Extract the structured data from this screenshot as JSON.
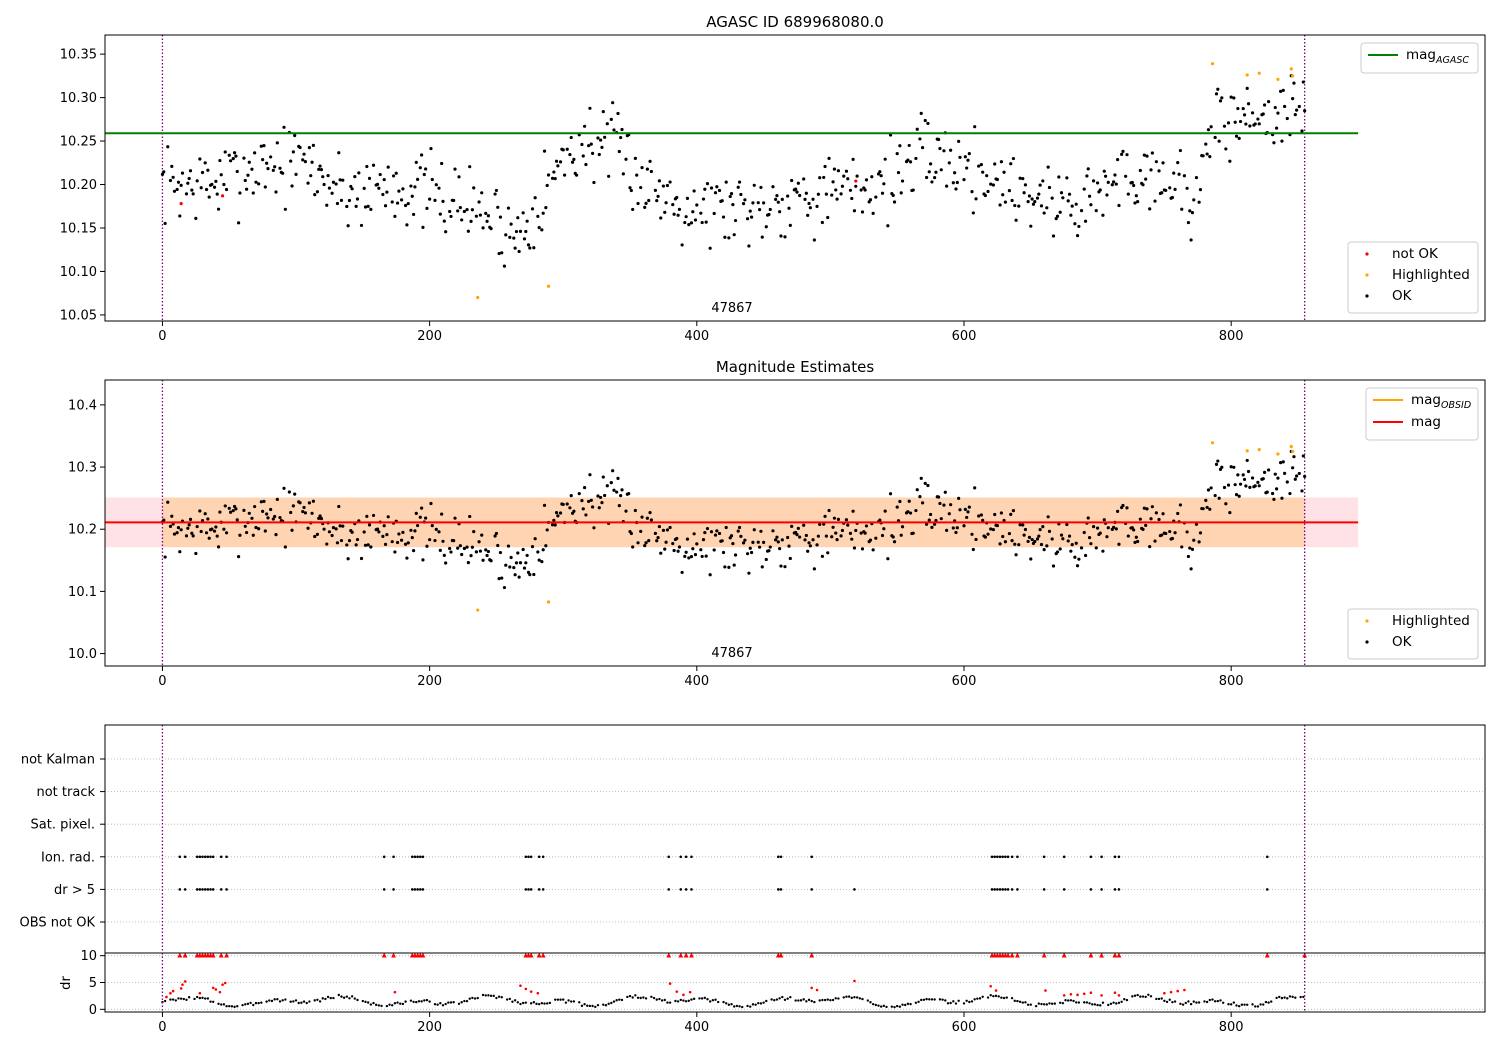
{
  "chart_data": [
    {
      "type": "scatter",
      "title": "AGASC ID 689968080.0",
      "xlim": [
        -43,
        990
      ],
      "ylim": [
        10.043,
        10.372
      ],
      "x_ticks": [
        0,
        200,
        400,
        600,
        800
      ],
      "x_tick_labels": [
        "0",
        "200",
        "400",
        "600",
        "800"
      ],
      "y_ticks": [
        10.05,
        10.1,
        10.15,
        10.2,
        10.25,
        10.3,
        10.35
      ],
      "y_tick_labels": [
        "10.05",
        "10.10",
        "10.15",
        "10.20",
        "10.25",
        "10.30",
        "10.35"
      ],
      "obsid_label": "47867",
      "obsid_label_x": 428,
      "obsid_bounds": [
        0,
        855
      ],
      "mag_agasc": 10.259,
      "mag_agasc_range": [
        -43,
        895
      ],
      "legend_line": [
        {
          "name": "mag",
          "subscript": "AGASC",
          "color": "#008000"
        }
      ],
      "legend_points": [
        {
          "name": "not OK",
          "color": "#ff0000"
        },
        {
          "name": "Highlighted",
          "color": "#ffa500"
        },
        {
          "name": "OK",
          "color": "#000000"
        }
      ],
      "series": [
        {
          "name": "not OK",
          "color": "#ff0000",
          "points": [
            [
              14,
              10.178
            ],
            [
              45,
              10.187
            ],
            [
              519,
              10.204
            ]
          ]
        },
        {
          "name": "Highlighted",
          "color": "#ffa500",
          "points": [
            [
              236,
              10.07
            ],
            [
              289,
              10.083
            ],
            [
              786,
              10.339
            ],
            [
              812,
              10.326
            ],
            [
              821,
              10.328
            ],
            [
              835,
              10.321
            ],
            [
              845,
              10.333
            ],
            [
              846,
              10.325
            ]
          ]
        }
      ],
      "ok_trend": [
        [
          0,
          10.2
        ],
        [
          40,
          10.2
        ],
        [
          75,
          10.225
        ],
        [
          110,
          10.222
        ],
        [
          135,
          10.19
        ],
        [
          170,
          10.2
        ],
        [
          200,
          10.19
        ],
        [
          240,
          10.17
        ],
        [
          265,
          10.14
        ],
        [
          285,
          10.19
        ],
        [
          305,
          10.24
        ],
        [
          325,
          10.25
        ],
        [
          345,
          10.235
        ],
        [
          360,
          10.2
        ],
        [
          400,
          10.175
        ],
        [
          440,
          10.175
        ],
        [
          480,
          10.19
        ],
        [
          510,
          10.19
        ],
        [
          540,
          10.205
        ],
        [
          575,
          10.235
        ],
        [
          610,
          10.215
        ],
        [
          640,
          10.195
        ],
        [
          665,
          10.18
        ],
        [
          690,
          10.18
        ],
        [
          720,
          10.21
        ],
        [
          750,
          10.215
        ],
        [
          770,
          10.18
        ],
        [
          790,
          10.27
        ],
        [
          820,
          10.28
        ],
        [
          855,
          10.285
        ]
      ],
      "ok_scatter": 0.022
    },
    {
      "type": "scatter",
      "title": "Magnitude Estimates",
      "xlim": [
        -43,
        990
      ],
      "ylim": [
        9.98,
        10.44
      ],
      "x_ticks": [
        0,
        200,
        400,
        600,
        800
      ],
      "x_tick_labels": [
        "0",
        "200",
        "400",
        "600",
        "800"
      ],
      "y_ticks": [
        10.0,
        10.1,
        10.2,
        10.3,
        10.4
      ],
      "y_tick_labels": [
        "10.0",
        "10.1",
        "10.2",
        "10.3",
        "10.4"
      ],
      "obsid_label": "47867",
      "obsid_label_x": 428,
      "obsid_bounds": [
        0,
        855
      ],
      "mag": 10.211,
      "mag_band": [
        10.171,
        10.251
      ],
      "mag_obsid_band": [
        10.171,
        10.251
      ],
      "band_range": [
        -43,
        895
      ],
      "legend_line": [
        {
          "name": "mag",
          "subscript": "OBSID",
          "color": "#ffa500"
        },
        {
          "name": "mag",
          "subscript": "",
          "color": "#ff0000"
        }
      ],
      "legend_points": [
        {
          "name": "Highlighted",
          "color": "#ffa500"
        },
        {
          "name": "OK",
          "color": "#000000"
        }
      ],
      "series": [
        {
          "name": "Highlighted",
          "color": "#ffa500",
          "points": [
            [
              236,
              10.07
            ],
            [
              289,
              10.083
            ],
            [
              786,
              10.339
            ],
            [
              812,
              10.326
            ],
            [
              821,
              10.328
            ],
            [
              835,
              10.321
            ],
            [
              845,
              10.333
            ],
            [
              846,
              10.325
            ]
          ]
        }
      ]
    },
    {
      "type": "scatter",
      "xlim": [
        -43,
        990
      ],
      "y_categories": [
        "not Kalman",
        "not track",
        "Sat. pixel.",
        "Ion. rad.",
        "dr > 5",
        "OBS not OK"
      ],
      "flags": {
        "Ion. rad.": [
          13,
          17,
          26,
          28,
          30,
          32,
          34,
          36,
          38,
          44,
          48,
          166,
          173,
          187,
          189,
          191,
          193,
          195,
          272,
          274,
          276,
          282,
          285,
          379,
          388,
          392,
          396,
          461,
          463,
          486,
          621,
          623,
          625,
          627,
          629,
          631,
          633,
          636,
          640,
          660,
          675,
          695,
          703,
          713,
          716,
          827
        ],
        "dr > 5": [
          13,
          17,
          26,
          28,
          30,
          32,
          34,
          36,
          38,
          44,
          48,
          166,
          173,
          187,
          189,
          191,
          193,
          195,
          272,
          274,
          276,
          282,
          285,
          379,
          388,
          392,
          396,
          461,
          463,
          486,
          518,
          621,
          623,
          625,
          627,
          629,
          631,
          633,
          636,
          640,
          660,
          675,
          695,
          703,
          713,
          716,
          827
        ]
      },
      "x_ticks": [
        0,
        200,
        400,
        600,
        800
      ],
      "x_tick_labels": [
        "0",
        "200",
        "400",
        "600",
        "800"
      ],
      "obsid_bounds": [
        0,
        855
      ]
    },
    {
      "type": "scatter",
      "ylabel": "dr",
      "xlim": [
        -43,
        990
      ],
      "ylim": [
        -0.5,
        10.5
      ],
      "y_ticks": [
        0,
        5,
        10
      ],
      "y_tick_labels": [
        "0",
        "5",
        "10"
      ],
      "x_ticks": [
        0,
        200,
        400,
        600,
        800
      ],
      "x_tick_labels": [
        "0",
        "200",
        "400",
        "600",
        "800"
      ],
      "obsid_bounds": [
        0,
        855
      ],
      "capped_markers_at_10": [
        13,
        17,
        26,
        28,
        30,
        32,
        34,
        36,
        38,
        44,
        48,
        166,
        173,
        187,
        189,
        191,
        193,
        195,
        272,
        274,
        276,
        282,
        285,
        379,
        388,
        392,
        396,
        461,
        463,
        486,
        621,
        623,
        625,
        627,
        629,
        631,
        633,
        636,
        640,
        660,
        675,
        695,
        703,
        713,
        716,
        827,
        855
      ],
      "red_points": [
        [
          3,
          2.3
        ],
        [
          6,
          3.0
        ],
        [
          8,
          3.4
        ],
        [
          14,
          3.9
        ],
        [
          15,
          4.6
        ],
        [
          17,
          5.2
        ],
        [
          28,
          3.0
        ],
        [
          38,
          4.0
        ],
        [
          40,
          3.7
        ],
        [
          43,
          3.2
        ],
        [
          45,
          4.6
        ],
        [
          47,
          4.9
        ],
        [
          174,
          3.2
        ],
        [
          268,
          4.4
        ],
        [
          272,
          3.8
        ],
        [
          276,
          3.3
        ],
        [
          281,
          3.0
        ],
        [
          380,
          4.8
        ],
        [
          385,
          3.3
        ],
        [
          390,
          2.7
        ],
        [
          395,
          3.2
        ],
        [
          486,
          4.0
        ],
        [
          490,
          3.6
        ],
        [
          518,
          5.3
        ],
        [
          620,
          4.3
        ],
        [
          624,
          3.5
        ],
        [
          661,
          3.5
        ],
        [
          675,
          2.6
        ],
        [
          680,
          2.8
        ],
        [
          685,
          2.7
        ],
        [
          690,
          2.9
        ],
        [
          695,
          3.1
        ],
        [
          703,
          2.6
        ],
        [
          713,
          3.1
        ],
        [
          716,
          2.6
        ],
        [
          750,
          3.0
        ],
        [
          755,
          3.2
        ],
        [
          760,
          3.4
        ],
        [
          765,
          3.6
        ]
      ]
    }
  ]
}
